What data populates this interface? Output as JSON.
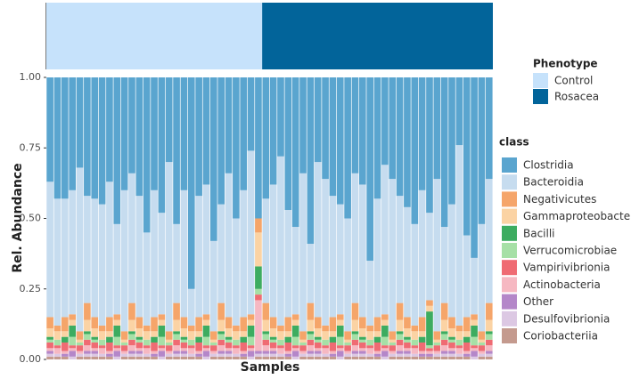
{
  "chart_data": {
    "type": "stacked_bar",
    "y_label": "Rel. Abundance",
    "x_label": "Samples",
    "ylim": [
      0,
      1
    ],
    "yticks": [
      {
        "value": 0,
        "label": "0.00"
      },
      {
        "value": 0.25,
        "label": "0.25"
      },
      {
        "value": 0.5,
        "label": "0.50"
      },
      {
        "value": 0.75,
        "label": "0.75"
      },
      {
        "value": 1,
        "label": "1.00"
      }
    ],
    "legend_title": "class",
    "phenotype": {
      "title": "Phenotype",
      "groups": [
        {
          "name": "Control",
          "color": "#c6e2fb",
          "count": 29
        },
        {
          "name": "Rosacea",
          "color": "#02649a",
          "count": 31
        }
      ]
    },
    "series": [
      {
        "name": "Clostridia",
        "color": "#5aa5cf",
        "values": [
          0.37,
          0.43,
          0.43,
          0.4,
          0.32,
          0.42,
          0.43,
          0.45,
          0.37,
          0.52,
          0.4,
          0.34,
          0.42,
          0.55,
          0.4,
          0.48,
          0.3,
          0.52,
          0.4,
          0.75,
          0.42,
          0.38,
          0.58,
          0.45,
          0.34,
          0.5,
          0.4,
          0.26,
          0.5,
          0.43,
          0.38,
          0.28,
          0.47,
          0.53,
          0.34,
          0.59,
          0.3,
          0.36,
          0.42,
          0.45,
          0.5,
          0.34,
          0.38,
          0.65,
          0.43,
          0.31,
          0.36,
          0.42,
          0.46,
          0.52,
          0.4,
          0.48,
          0.36,
          0.53,
          0.45,
          0.24,
          0.56,
          0.64,
          0.52,
          0.36
        ]
      },
      {
        "name": "Bacteroidia",
        "color": "#c6dcef",
        "values": [
          0.48,
          0.45,
          0.42,
          0.44,
          0.58,
          0.38,
          0.42,
          0.43,
          0.48,
          0.32,
          0.5,
          0.46,
          0.43,
          0.33,
          0.45,
          0.36,
          0.6,
          0.28,
          0.45,
          0.13,
          0.43,
          0.46,
          0.32,
          0.35,
          0.51,
          0.38,
          0.45,
          0.58,
          0,
          0.37,
          0.47,
          0.6,
          0.38,
          0.31,
          0.56,
          0.21,
          0.55,
          0.52,
          0.43,
          0.39,
          0.4,
          0.46,
          0.47,
          0.23,
          0.42,
          0.53,
          0.54,
          0.38,
          0.39,
          0.36,
          0.45,
          0.31,
          0.54,
          0.27,
          0.4,
          0.64,
          0.29,
          0.2,
          0.38,
          0.44
        ]
      },
      {
        "name": "Negativicutes",
        "color": "#f5a56a",
        "values": [
          0.04,
          0.02,
          0.05,
          0.02,
          0.03,
          0.06,
          0.04,
          0.02,
          0.05,
          0.02,
          0.03,
          0.06,
          0.04,
          0.02,
          0.05,
          0.02,
          0.03,
          0.06,
          0.04,
          0.02,
          0.05,
          0.02,
          0.03,
          0.06,
          0.04,
          0.02,
          0.05,
          0.02,
          0.05,
          0.06,
          0.04,
          0.02,
          0.05,
          0.02,
          0.03,
          0.06,
          0.04,
          0.02,
          0.05,
          0.02,
          0.03,
          0.06,
          0.04,
          0.02,
          0.05,
          0.02,
          0.03,
          0.06,
          0.04,
          0.02,
          0.05,
          0.02,
          0.03,
          0.06,
          0.04,
          0.02,
          0.05,
          0.02,
          0.03,
          0.06
        ]
      },
      {
        "name": "Gammaproteobacter",
        "color": "#fbd3a4",
        "values": [
          0.03,
          0.03,
          0.02,
          0.02,
          0.01,
          0.04,
          0.03,
          0.03,
          0.02,
          0.02,
          0.01,
          0.04,
          0.03,
          0.03,
          0.02,
          0.02,
          0.01,
          0.04,
          0.03,
          0.03,
          0.02,
          0.02,
          0.01,
          0.04,
          0.03,
          0.03,
          0.02,
          0.02,
          0.12,
          0.04,
          0.03,
          0.03,
          0.02,
          0.02,
          0.01,
          0.04,
          0.03,
          0.03,
          0.02,
          0.02,
          0.01,
          0.04,
          0.03,
          0.03,
          0.02,
          0.02,
          0.01,
          0.04,
          0.03,
          0.03,
          0.02,
          0.02,
          0.01,
          0.04,
          0.03,
          0.03,
          0.02,
          0.02,
          0.01,
          0.04
        ]
      },
      {
        "name": "Bacilli",
        "color": "#3dac60",
        "values": [
          0.01,
          0,
          0.02,
          0.04,
          0,
          0.01,
          0.01,
          0,
          0.02,
          0.04,
          0,
          0.01,
          0.01,
          0,
          0.02,
          0.04,
          0,
          0.01,
          0.01,
          0,
          0.02,
          0.04,
          0,
          0.01,
          0.01,
          0,
          0.02,
          0.04,
          0.08,
          0.01,
          0.01,
          0,
          0.02,
          0.04,
          0,
          0.01,
          0.01,
          0,
          0.02,
          0.04,
          0,
          0.01,
          0.01,
          0,
          0.02,
          0.04,
          0,
          0.01,
          0.01,
          0,
          0.02,
          0.12,
          0,
          0.01,
          0.01,
          0,
          0.02,
          0.04,
          0,
          0.01
        ]
      },
      {
        "name": "Verrucomicrobiae",
        "color": "#a6e0a6",
        "values": [
          0.01,
          0.02,
          0,
          0.03,
          0.01,
          0.02,
          0.01,
          0.02,
          0,
          0.03,
          0.01,
          0.02,
          0.01,
          0.02,
          0,
          0.03,
          0.01,
          0.02,
          0.01,
          0.02,
          0,
          0.03,
          0.01,
          0.02,
          0.01,
          0.02,
          0,
          0.03,
          0.02,
          0.02,
          0.01,
          0.02,
          0,
          0.03,
          0.01,
          0.02,
          0.01,
          0.02,
          0,
          0.03,
          0.01,
          0.02,
          0.01,
          0.02,
          0,
          0.03,
          0.01,
          0.02,
          0.01,
          0.02,
          0,
          0.01,
          0.01,
          0.02,
          0.01,
          0.02,
          0,
          0.03,
          0.01,
          0.02
        ]
      },
      {
        "name": "Vampirivibrionia",
        "color": "#ef6b73",
        "values": [
          0.02,
          0.01,
          0.03,
          0.01,
          0.02,
          0.02,
          0.02,
          0.01,
          0.03,
          0.01,
          0.02,
          0.02,
          0.02,
          0.01,
          0.03,
          0.01,
          0.02,
          0.02,
          0.02,
          0.01,
          0.03,
          0.01,
          0.02,
          0.02,
          0.02,
          0.01,
          0.03,
          0.01,
          0.02,
          0.02,
          0.02,
          0.01,
          0.03,
          0.01,
          0.02,
          0.02,
          0.02,
          0.01,
          0.03,
          0.01,
          0.02,
          0.02,
          0.02,
          0.01,
          0.03,
          0.01,
          0.02,
          0.02,
          0.02,
          0.01,
          0.03,
          0.01,
          0.02,
          0.02,
          0.02,
          0.01,
          0.03,
          0.01,
          0.02,
          0.02
        ]
      },
      {
        "name": "Actinobacteria",
        "color": "#f6b8c2",
        "values": [
          0.01,
          0.02,
          0.01,
          0.01,
          0.01,
          0.02,
          0.01,
          0.02,
          0.01,
          0.01,
          0.01,
          0.02,
          0.01,
          0.02,
          0.01,
          0.01,
          0.01,
          0.02,
          0.01,
          0.02,
          0.01,
          0.01,
          0.01,
          0.02,
          0.01,
          0.02,
          0.01,
          0.01,
          0.18,
          0.02,
          0.01,
          0.02,
          0.01,
          0.01,
          0.01,
          0.02,
          0.01,
          0.02,
          0.01,
          0.01,
          0.01,
          0.02,
          0.01,
          0.02,
          0.01,
          0.01,
          0.01,
          0.02,
          0.01,
          0.02,
          0.01,
          0.01,
          0.01,
          0.02,
          0.01,
          0.02,
          0.01,
          0.01,
          0.01,
          0.02
        ]
      },
      {
        "name": "Other",
        "color": "#b487c9",
        "values": [
          0.01,
          0,
          0.01,
          0.02,
          0,
          0.01,
          0.01,
          0,
          0.01,
          0.02,
          0,
          0.01,
          0.01,
          0,
          0.01,
          0.02,
          0,
          0.01,
          0.01,
          0,
          0.01,
          0.02,
          0,
          0.01,
          0.01,
          0,
          0.01,
          0.02,
          0.01,
          0.01,
          0.01,
          0,
          0.01,
          0.02,
          0,
          0.01,
          0.01,
          0,
          0.01,
          0.02,
          0,
          0.01,
          0.01,
          0,
          0.01,
          0.02,
          0,
          0.01,
          0.01,
          0,
          0.01,
          0.01,
          0,
          0.01,
          0.01,
          0,
          0.01,
          0.02,
          0,
          0.01
        ]
      },
      {
        "name": "Desulfovibrionia",
        "color": "#dcc8e3",
        "values": [
          0.01,
          0.01,
          0,
          0.01,
          0.01,
          0.01,
          0.01,
          0.01,
          0,
          0.01,
          0.01,
          0.01,
          0.01,
          0.01,
          0,
          0.01,
          0.01,
          0.01,
          0.01,
          0.01,
          0,
          0.01,
          0.01,
          0.01,
          0.01,
          0.01,
          0,
          0.01,
          0.01,
          0.01,
          0.01,
          0.01,
          0,
          0.01,
          0.01,
          0.01,
          0.01,
          0.01,
          0,
          0.01,
          0.01,
          0.01,
          0.01,
          0.01,
          0,
          0.01,
          0.01,
          0.01,
          0.01,
          0.01,
          0,
          0,
          0.01,
          0.01,
          0.01,
          0.01,
          0,
          0.01,
          0.01,
          0.01
        ]
      },
      {
        "name": "Coriobacteriia",
        "color": "#c49a8e",
        "values": [
          0.01,
          0.01,
          0.01,
          0,
          0.01,
          0.01,
          0.01,
          0.01,
          0.01,
          0,
          0.01,
          0.01,
          0.01,
          0.01,
          0.01,
          0,
          0.01,
          0.01,
          0.01,
          0.01,
          0.01,
          0,
          0.01,
          0.01,
          0.01,
          0.01,
          0.01,
          0,
          0.01,
          0.01,
          0.01,
          0.01,
          0.01,
          0,
          0.01,
          0.01,
          0.01,
          0.01,
          0.01,
          0,
          0.01,
          0.01,
          0.01,
          0.01,
          0.01,
          0,
          0.01,
          0.01,
          0.01,
          0.01,
          0.01,
          0.01,
          0.01,
          0.01,
          0.01,
          0.01,
          0.01,
          0,
          0.01,
          0.01
        ]
      }
    ]
  }
}
